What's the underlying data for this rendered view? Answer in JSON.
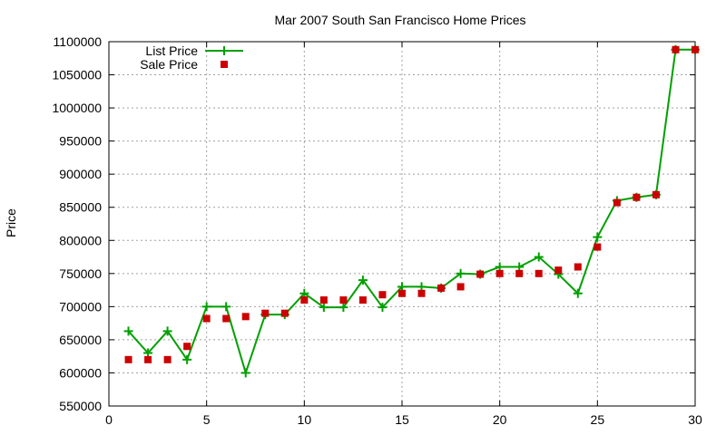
{
  "chart_data": {
    "type": "line",
    "title": "Mar 2007 South San Francisco Home Prices",
    "xlabel": "",
    "ylabel": "Price",
    "xlim": [
      0,
      30
    ],
    "ylim": [
      550000,
      1100000
    ],
    "xticks": [
      0,
      5,
      10,
      15,
      20,
      25,
      30
    ],
    "yticks": [
      550000,
      600000,
      650000,
      700000,
      750000,
      800000,
      850000,
      900000,
      950000,
      1000000,
      1050000,
      1100000
    ],
    "grid": true,
    "legend": "top-left",
    "x": [
      1,
      2,
      3,
      4,
      5,
      6,
      7,
      8,
      9,
      10,
      11,
      12,
      13,
      14,
      15,
      16,
      17,
      18,
      19,
      20,
      21,
      22,
      23,
      24,
      25,
      26,
      27,
      28,
      29,
      30
    ],
    "series": [
      {
        "name": "List Price",
        "style": "line-with-plus-markers",
        "color": "#00a000",
        "values": [
          663000,
          630000,
          663000,
          620000,
          700000,
          700000,
          600000,
          688000,
          688000,
          720000,
          699000,
          699000,
          740000,
          699000,
          730000,
          730000,
          728000,
          750000,
          749000,
          760000,
          760000,
          775000,
          749000,
          720000,
          805000,
          860000,
          865000,
          869000,
          1088000,
          1088000
        ]
      },
      {
        "name": "Sale Price",
        "style": "square-markers",
        "color": "#cc0000",
        "values": [
          620000,
          620000,
          620000,
          640000,
          682000,
          682000,
          685000,
          690000,
          690000,
          710000,
          710000,
          710000,
          710000,
          718000,
          720000,
          720000,
          728000,
          730000,
          749000,
          750000,
          750000,
          750000,
          755000,
          760000,
          790000,
          857000,
          865000,
          869000,
          1088000,
          1088000
        ]
      }
    ]
  }
}
